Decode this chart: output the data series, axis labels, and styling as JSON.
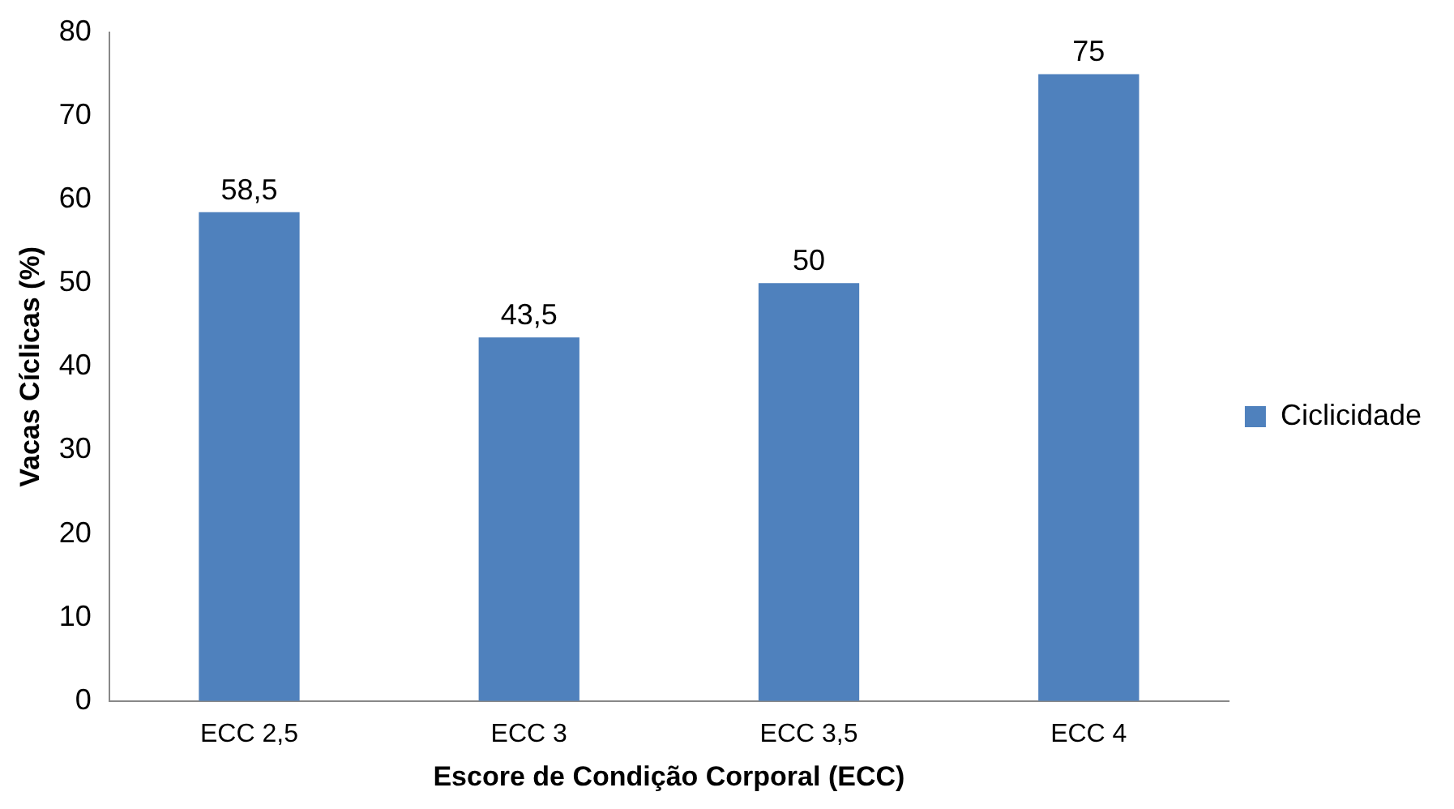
{
  "chart_data": {
    "type": "bar",
    "xlabel": "Escore de Condição Corporal (ECC)",
    "ylabel": "Vacas Cíclicas (%)",
    "categories": [
      "ECC 2,5",
      "ECC 3",
      "ECC 3,5",
      "ECC 4"
    ],
    "series": [
      {
        "name": "Ciclicidade",
        "color": "#4f81bd",
        "values": [
          58.5,
          43.5,
          50,
          75
        ],
        "value_labels": [
          "58,5",
          "43,5",
          "50",
          "75"
        ]
      }
    ],
    "ylim": [
      0,
      80
    ],
    "yticks": [
      0,
      10,
      20,
      30,
      40,
      50,
      60,
      70,
      80
    ],
    "grid": false,
    "legend": "right"
  }
}
